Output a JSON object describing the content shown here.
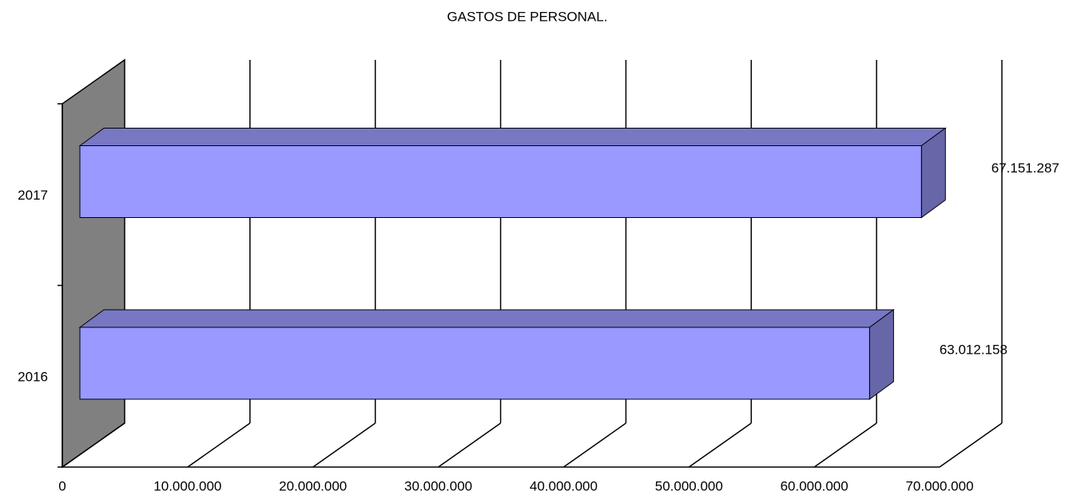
{
  "chart_data": {
    "type": "bar3d_horizontal",
    "title": "GASTOS DE PERSONAL.",
    "categories": [
      "2016",
      "2017"
    ],
    "values": [
      63012158,
      67151287
    ],
    "value_labels": [
      "63.012.158",
      "67.151.287"
    ],
    "color": "#9999ff",
    "xlim": [
      0,
      70000000
    ],
    "xticks": [
      0,
      {
        "value": 10000000,
        "label": "10.000.000"
      },
      {
        "value": 20000000,
        "label": "20.000.000"
      },
      {
        "value": 30000000,
        "label": "30.000.000"
      },
      {
        "value": 40000000,
        "label": "40.000.000"
      },
      {
        "value": 50000000,
        "label": "50.000.000"
      },
      {
        "value": 60000000,
        "label": "60.000.000"
      },
      {
        "value": 70000000,
        "label": "70.000.000"
      }
    ],
    "grid": true
  }
}
